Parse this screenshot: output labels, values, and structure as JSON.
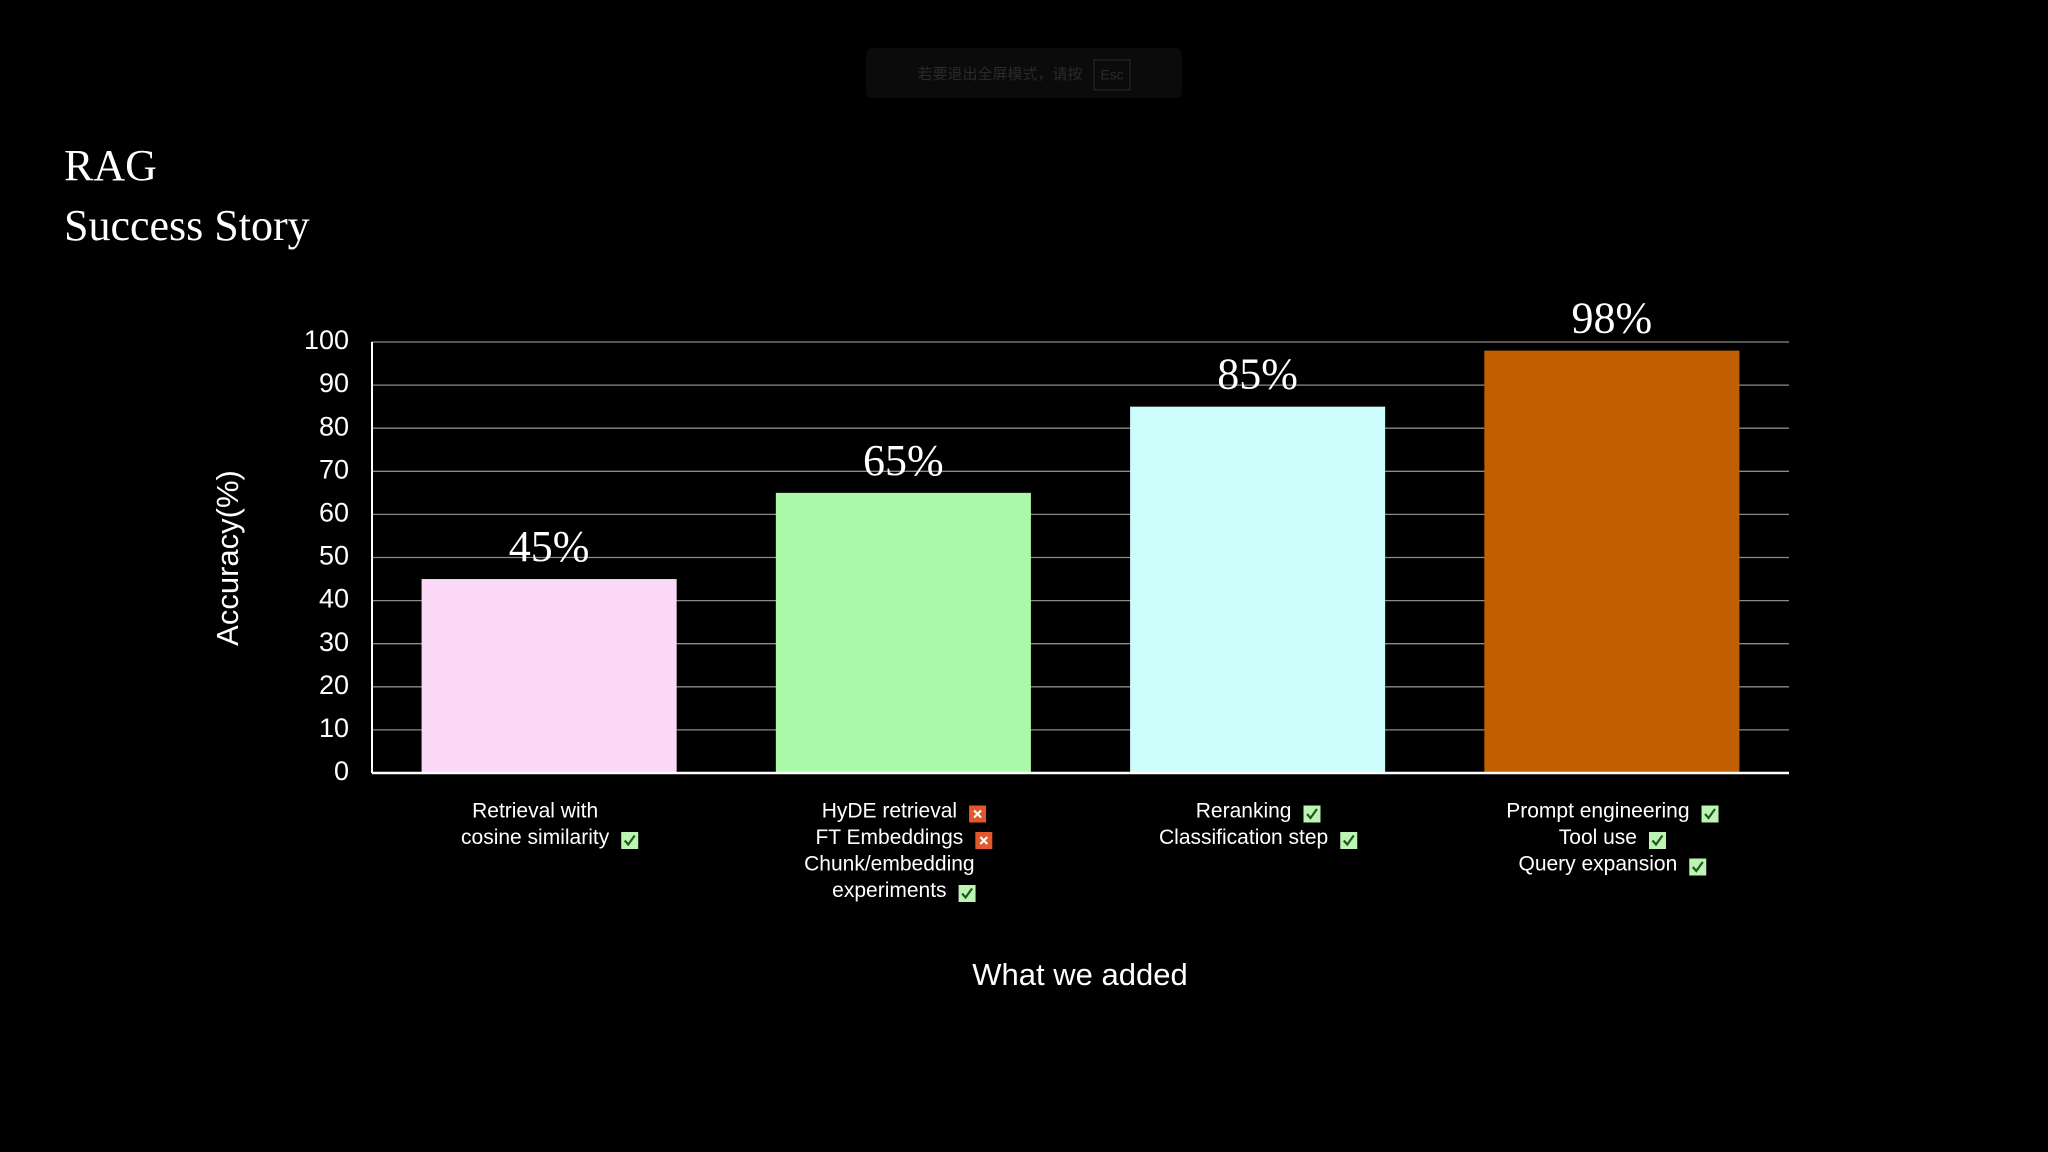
{
  "overlay": {
    "notice": "若要退出全屏模式，请按",
    "key": "Esc"
  },
  "chart_data": {
    "type": "bar",
    "title": "RAG",
    "subtitle": "Success Story",
    "y_label": "Accuracy(%)",
    "x_label": "What we added",
    "categories": [
      [
        {
          "lines": [
            "Retrieval with",
            "cosine similarity"
          ],
          "status": "check"
        }
      ],
      [
        {
          "lines": [
            "HyDE retrieval"
          ],
          "status": "cross"
        },
        {
          "lines": [
            "FT Embeddings"
          ],
          "status": "cross"
        },
        {
          "lines": [
            "Chunk/embedding",
            "experiments"
          ],
          "status": "check"
        }
      ],
      [
        {
          "lines": [
            "Reranking"
          ],
          "status": "check"
        },
        {
          "lines": [
            "Classification step"
          ],
          "status": "check"
        }
      ],
      [
        {
          "lines": [
            "Prompt engineering"
          ],
          "status": "check"
        },
        {
          "lines": [
            "Tool use"
          ],
          "status": "check"
        },
        {
          "lines": [
            "Query expansion"
          ],
          "status": "check"
        }
      ]
    ],
    "values": [
      45,
      65,
      85,
      98
    ],
    "value_labels": [
      "45%",
      "65%",
      "85%",
      "98%"
    ],
    "colors": [
      "#fcd9f7",
      "#aaf9a8",
      "#ccfdfb",
      "#c25f00"
    ],
    "ylim": [
      0,
      100
    ],
    "yticks": [
      0,
      10,
      20,
      30,
      40,
      50,
      60,
      70,
      80,
      90,
      100
    ],
    "grid": true
  }
}
